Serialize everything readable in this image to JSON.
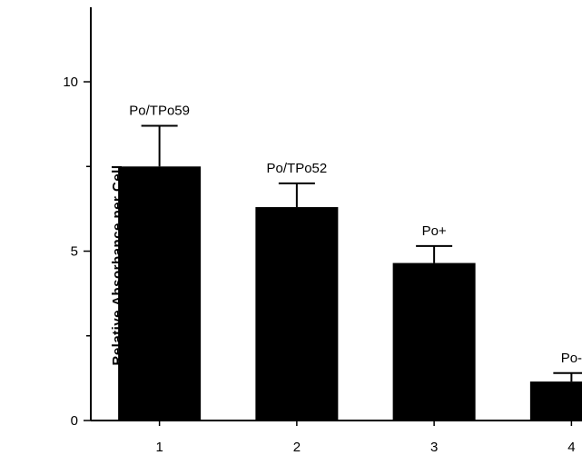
{
  "chart_data": {
    "type": "bar",
    "categories": [
      "1",
      "2",
      "3",
      "4"
    ],
    "values": [
      7.5,
      6.3,
      4.65,
      1.15
    ],
    "errors": [
      1.2,
      0.7,
      0.5,
      0.25
    ],
    "bar_labels": [
      "Po/TPo59",
      "Po/TPo52",
      "Po+",
      "Po-"
    ],
    "ylabel": "Relative  Absorbance  per  Cell",
    "xlabel": "",
    "title": "",
    "yticks": [
      "0",
      "5",
      "10"
    ],
    "ylim": [
      0,
      12.2
    ],
    "grid": false,
    "legend": "none",
    "bar_color": "#000000"
  }
}
